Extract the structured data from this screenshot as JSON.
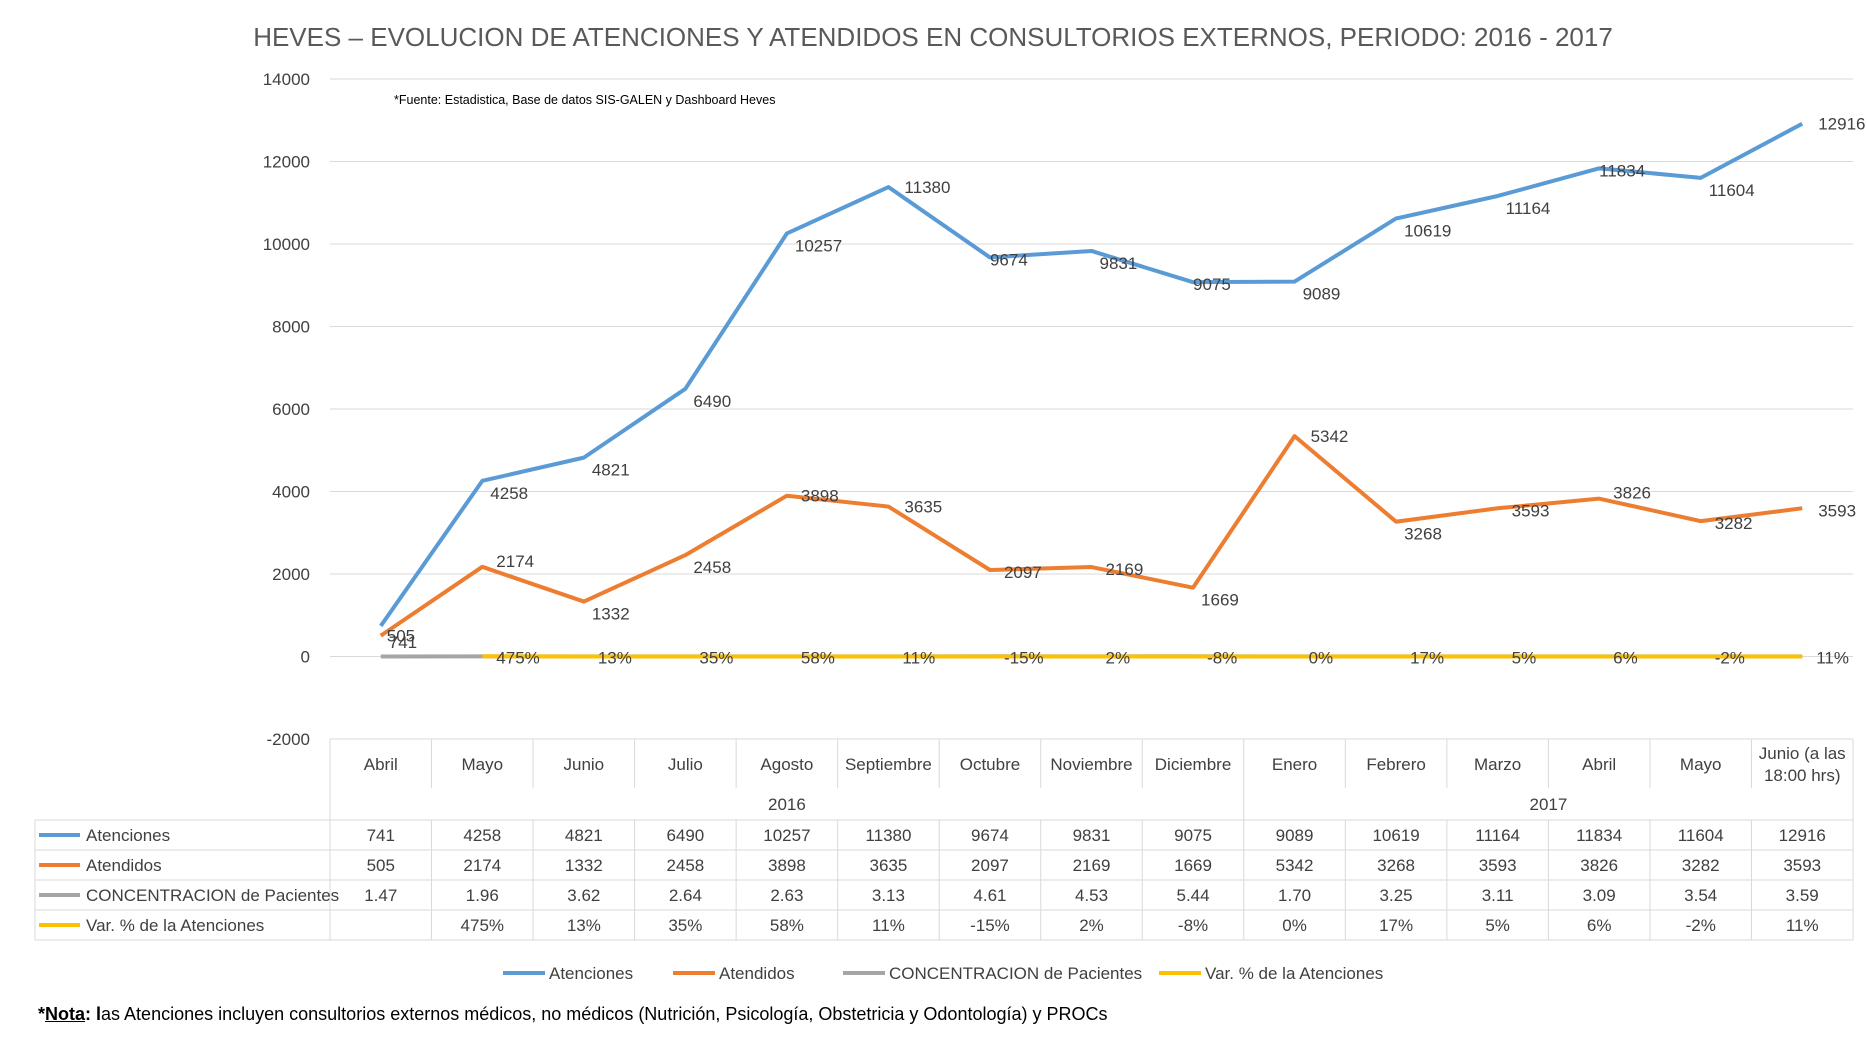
{
  "chart_data": {
    "type": "line",
    "title": "HEVES – EVOLUCION DE ATENCIONES Y ATENDIDOS EN CONSULTORIOS EXTERNOS, PERIODO: 2016 - 2017",
    "annotation": "*Fuente: Estadistica, Base de datos SIS-GALEN y Dashboard Heves",
    "ylim": [
      -2000,
      14000
    ],
    "yticks": [
      "14000",
      "12000",
      "10000",
      "8000",
      "6000",
      "4000",
      "2000",
      "0",
      "-2000"
    ],
    "grid": true,
    "legend_position": "bottom",
    "categories": [
      "Abril",
      "Mayo",
      "Junio",
      "Julio",
      "Agosto",
      "Septiembre",
      "Octubre",
      "Noviembre",
      "Diciembre",
      "Enero",
      "Febrero",
      "Marzo",
      "Abril",
      "Mayo",
      "Junio (a las 18:00 hrs)"
    ],
    "category_lines": [
      [
        "Abril"
      ],
      [
        "Mayo"
      ],
      [
        "Junio"
      ],
      [
        "Julio"
      ],
      [
        "Agosto"
      ],
      [
        "Septiembre"
      ],
      [
        "Octubre"
      ],
      [
        "Noviembre"
      ],
      [
        "Diciembre"
      ],
      [
        "Enero"
      ],
      [
        "Febrero"
      ],
      [
        "Marzo"
      ],
      [
        "Abril"
      ],
      [
        "Mayo"
      ],
      [
        "Junio (a las",
        "18:00 hrs)"
      ]
    ],
    "years": [
      {
        "label": "2016",
        "from": 0,
        "to": 8
      },
      {
        "label": "2017",
        "from": 9,
        "to": 14
      }
    ],
    "series": [
      {
        "name": "Atenciones",
        "color": "#5B9BD5",
        "values": [
          741,
          4258,
          4821,
          6490,
          10257,
          11380,
          9674,
          9831,
          9075,
          9089,
          10619,
          11164,
          11834,
          11604,
          12916
        ],
        "table": [
          "741",
          "4258",
          "4821",
          "6490",
          "10257",
          "11380",
          "9674",
          "9831",
          "9075",
          "9089",
          "10619",
          "11164",
          "11834",
          "11604",
          "12916"
        ]
      },
      {
        "name": "Atendidos",
        "color": "#ED7D31",
        "values": [
          505,
          2174,
          1332,
          2458,
          3898,
          3635,
          2097,
          2169,
          1669,
          5342,
          3268,
          3593,
          3826,
          3282,
          3593
        ],
        "table": [
          "505",
          "2174",
          "1332",
          "2458",
          "3898",
          "3635",
          "2097",
          "2169",
          "1669",
          "5342",
          "3268",
          "3593",
          "3826",
          "3282",
          "3593"
        ]
      },
      {
        "name": "CONCENTRACION de Pacientes",
        "color": "#A5A5A5",
        "values": [
          1.47,
          1.96,
          3.62,
          2.64,
          2.63,
          3.13,
          4.61,
          4.53,
          5.44,
          1.7,
          3.25,
          3.11,
          3.09,
          3.54,
          3.59
        ],
        "table": [
          "1.47",
          "1.96",
          "3.62",
          "2.64",
          "2.63",
          "3.13",
          "4.61",
          "4.53",
          "5.44",
          "1.70",
          "3.25",
          "3.11",
          "3.09",
          "3.54",
          "3.59"
        ]
      },
      {
        "name": "Var. % de la Atenciones",
        "color": "#FFC000",
        "values": [
          null,
          4.75,
          0.13,
          0.35,
          0.58,
          0.11,
          -0.15,
          0.02,
          -0.08,
          0.0,
          0.17,
          0.05,
          0.06,
          -0.02,
          0.11
        ],
        "table": [
          "",
          "475%",
          "13%",
          "35%",
          "58%",
          "11%",
          "-15%",
          "2%",
          "-8%",
          "0%",
          "17%",
          "5%",
          "6%",
          "-2%",
          "11%"
        ]
      }
    ]
  },
  "note": {
    "star": "*",
    "label": "Nota",
    "colon": ": ",
    "first_letter": "l",
    "text": "as Atenciones incluyen consultorios externos médicos, no médicos (Nutrición, Psicología, Obstetricia y Odontología) y PROCs"
  }
}
